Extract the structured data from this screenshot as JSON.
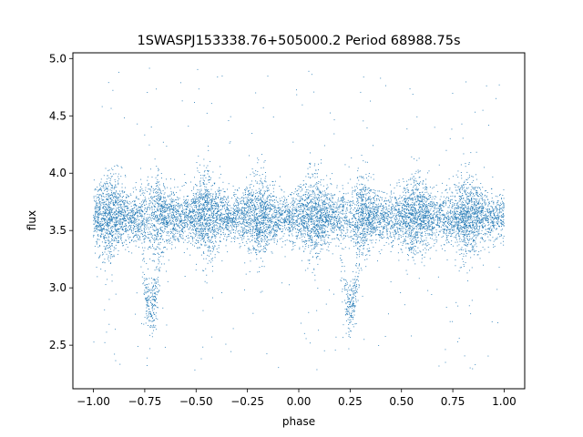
{
  "chart_data": {
    "type": "scatter",
    "title": "1SWASPJ153338.76+505000.2 Period 68988.75s",
    "xlabel": "phase",
    "ylabel": "flux",
    "xlim": [
      -1.1,
      1.1
    ],
    "ylim": [
      2.12,
      5.05
    ],
    "xticks": [
      -1.0,
      -0.75,
      -0.5,
      -0.25,
      0.0,
      0.25,
      0.5,
      0.75,
      1.0
    ],
    "xtick_labels": [
      "−1.00",
      "−0.75",
      "−0.50",
      "−0.25",
      "0.00",
      "0.25",
      "0.50",
      "0.75",
      "1.00"
    ],
    "yticks": [
      2.5,
      3.0,
      3.5,
      4.0,
      4.5,
      5.0
    ],
    "ytick_labels": [
      "2.5",
      "3.0",
      "3.5",
      "4.0",
      "4.5",
      "5.0"
    ],
    "grid": false,
    "legend": "none",
    "marker_color": "#1f77b4",
    "point_count_approx": 16000,
    "phase_range": [
      -1.0,
      1.0
    ],
    "baseline_flux": 3.62,
    "baseline_scatter": 0.13,
    "brightening_phases": [
      -0.92,
      -0.7,
      -0.45,
      -0.2,
      0.07,
      0.3,
      0.57,
      0.82
    ],
    "dip_phases": [
      -0.72,
      0.25
    ],
    "dip_min_flux": 2.82,
    "outlier_flux_range": [
      2.28,
      4.93
    ]
  }
}
